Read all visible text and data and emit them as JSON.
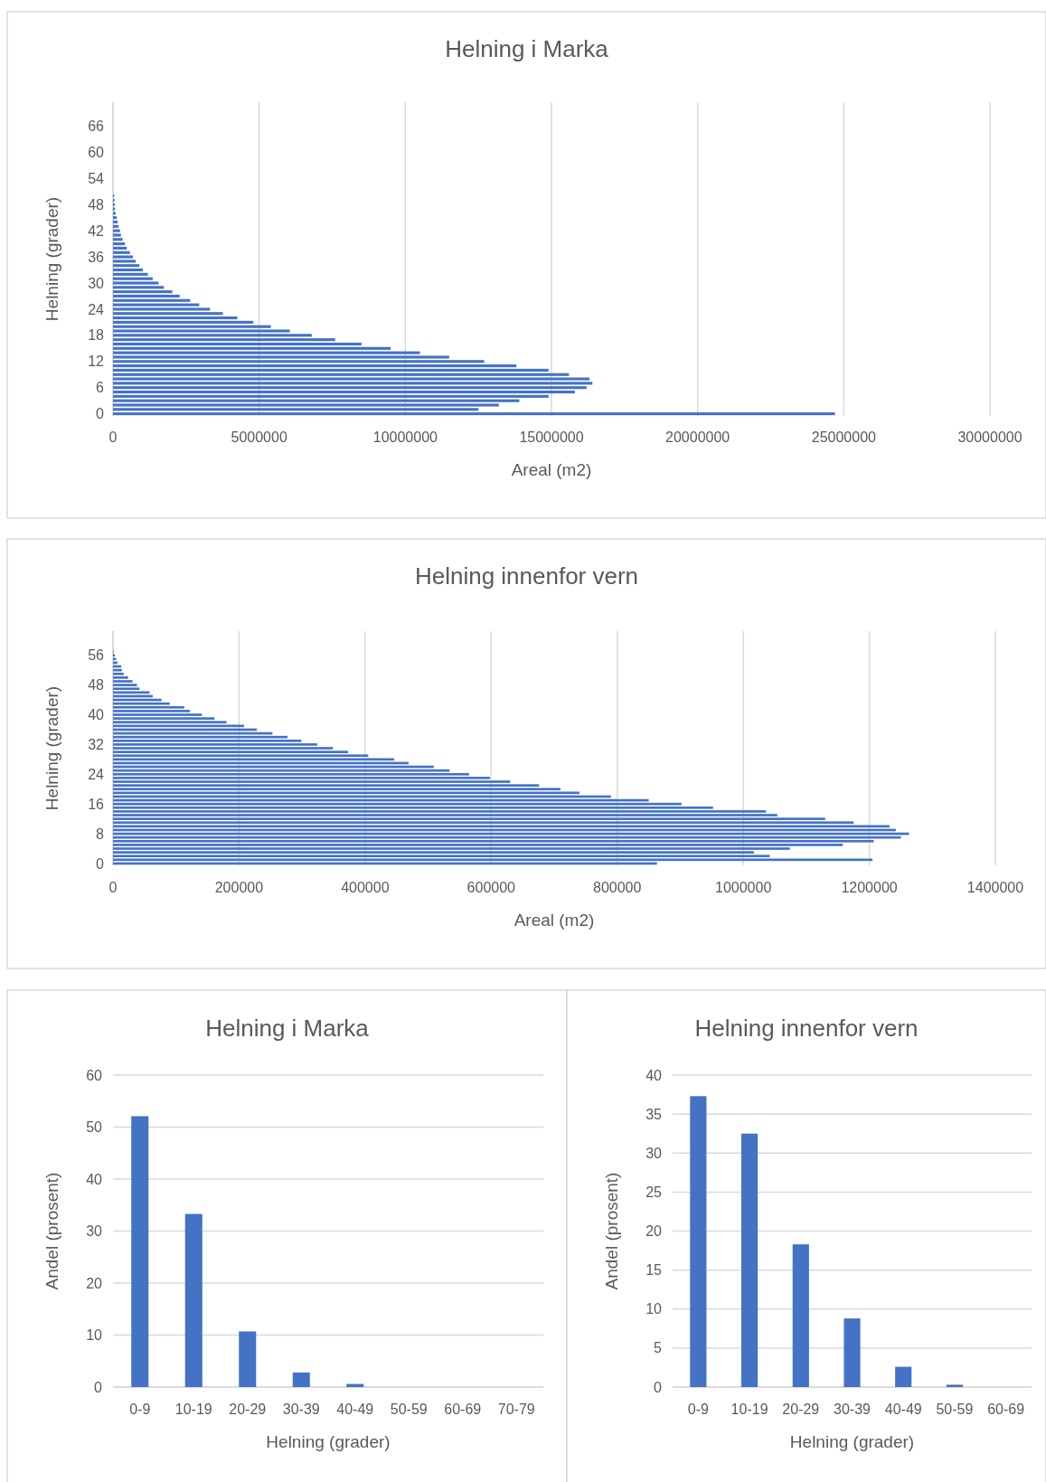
{
  "chart_data": [
    {
      "type": "bar",
      "orientation": "horizontal",
      "title": "Helning i Marka",
      "xlabel": "Areal (m2)",
      "ylabel": "Helning (grader)",
      "color": "#4472c4",
      "grid": "x",
      "xlim": [
        0,
        30000000
      ],
      "xticks": [
        0,
        5000000,
        10000000,
        15000000,
        20000000,
        25000000,
        30000000
      ],
      "categories": [
        null,
        null,
        null,
        null,
        null,
        "66",
        null,
        null,
        null,
        null,
        null,
        "60",
        null,
        null,
        null,
        null,
        null,
        "54",
        null,
        null,
        null,
        null,
        null,
        "48",
        null,
        null,
        null,
        null,
        null,
        "42",
        null,
        null,
        null,
        null,
        null,
        "36",
        null,
        null,
        null,
        null,
        null,
        "30",
        null,
        null,
        null,
        null,
        null,
        "24",
        null,
        null,
        null,
        null,
        null,
        "18",
        null,
        null,
        null,
        null,
        null,
        "12",
        null,
        null,
        null,
        null,
        null,
        "6",
        null,
        null,
        null,
        null,
        null,
        "0"
      ],
      "values": [
        0,
        0,
        0,
        0,
        0,
        0,
        0,
        0,
        0,
        0,
        0,
        0,
        0,
        0,
        0,
        0,
        0,
        0,
        0,
        0,
        0,
        40000,
        50000,
        60000,
        70000,
        90000,
        130000,
        160000,
        190000,
        240000,
        270000,
        330000,
        410000,
        470000,
        580000,
        680000,
        780000,
        900000,
        1020000,
        1190000,
        1360000,
        1560000,
        1740000,
        2030000,
        2280000,
        2640000,
        2950000,
        3320000,
        3760000,
        4250000,
        4800000,
        5400000,
        6050000,
        6800000,
        7600000,
        8500000,
        9500000,
        10500000,
        11500000,
        12700000,
        13800000,
        14900000,
        15600000,
        16300000,
        16400000,
        16200000,
        15800000,
        14900000,
        13900000,
        13200000,
        12500000,
        24700000
      ]
    },
    {
      "type": "bar",
      "orientation": "horizontal",
      "title": "Helning innenfor vern",
      "xlabel": "Areal (m2)",
      "ylabel": "Helning (grader)",
      "color": "#4472c4",
      "grid": "x",
      "xlim": [
        0,
        1400000
      ],
      "xticks": [
        0,
        200000,
        400000,
        600000,
        800000,
        1000000,
        1200000,
        1400000
      ],
      "categories": [
        null,
        null,
        null,
        null,
        null,
        null,
        "56",
        null,
        null,
        null,
        null,
        null,
        null,
        null,
        "48",
        null,
        null,
        null,
        null,
        null,
        null,
        null,
        "40",
        null,
        null,
        null,
        null,
        null,
        null,
        null,
        "32",
        null,
        null,
        null,
        null,
        null,
        null,
        null,
        "24",
        null,
        null,
        null,
        null,
        null,
        null,
        null,
        "16",
        null,
        null,
        null,
        null,
        null,
        null,
        null,
        "8",
        null,
        null,
        null,
        null,
        null,
        null,
        null,
        "0"
      ],
      "values": [
        0,
        0,
        0,
        0,
        0,
        1000,
        3000,
        5000,
        7000,
        13000,
        14000,
        17000,
        24000,
        31000,
        38000,
        42000,
        58000,
        63000,
        77000,
        90000,
        113000,
        122000,
        141000,
        161000,
        180000,
        208000,
        228000,
        253000,
        277000,
        299000,
        324000,
        349000,
        373000,
        405000,
        446000,
        469000,
        509000,
        534000,
        565000,
        598000,
        630000,
        676000,
        710000,
        740000,
        790000,
        850000,
        902000,
        952000,
        1036000,
        1054000,
        1130000,
        1175000,
        1232000,
        1242000,
        1263000,
        1250000,
        1207000,
        1158000,
        1074000,
        1017000,
        1042000,
        1205000,
        863000
      ]
    },
    {
      "type": "bar",
      "title": "Helning i Marka",
      "xlabel": "Helning (grader)",
      "ylabel": "Andel (prosent)",
      "color": "#4472c4",
      "grid": "y",
      "ylim": [
        0,
        60
      ],
      "yticks": [
        0,
        10,
        20,
        30,
        40,
        50,
        60
      ],
      "categories": [
        "0-9",
        "10-19",
        "20-29",
        "30-39",
        "40-49",
        "50-59",
        "60-69",
        "70-79"
      ],
      "values": [
        52.1,
        33.3,
        10.7,
        2.8,
        0.6,
        0,
        0,
        0
      ]
    },
    {
      "type": "bar",
      "title": "Helning innenfor vern",
      "xlabel": "Helning (grader)",
      "ylabel": "Andel (prosent)",
      "color": "#4472c4",
      "grid": "y",
      "ylim": [
        0,
        40
      ],
      "yticks": [
        0,
        5,
        10,
        15,
        20,
        25,
        30,
        35,
        40
      ],
      "categories": [
        "0-9",
        "10-19",
        "20-29",
        "30-39",
        "40-49",
        "50-59",
        "60-69"
      ],
      "values": [
        37.3,
        32.5,
        18.3,
        8.8,
        2.6,
        0.3,
        0
      ]
    }
  ]
}
